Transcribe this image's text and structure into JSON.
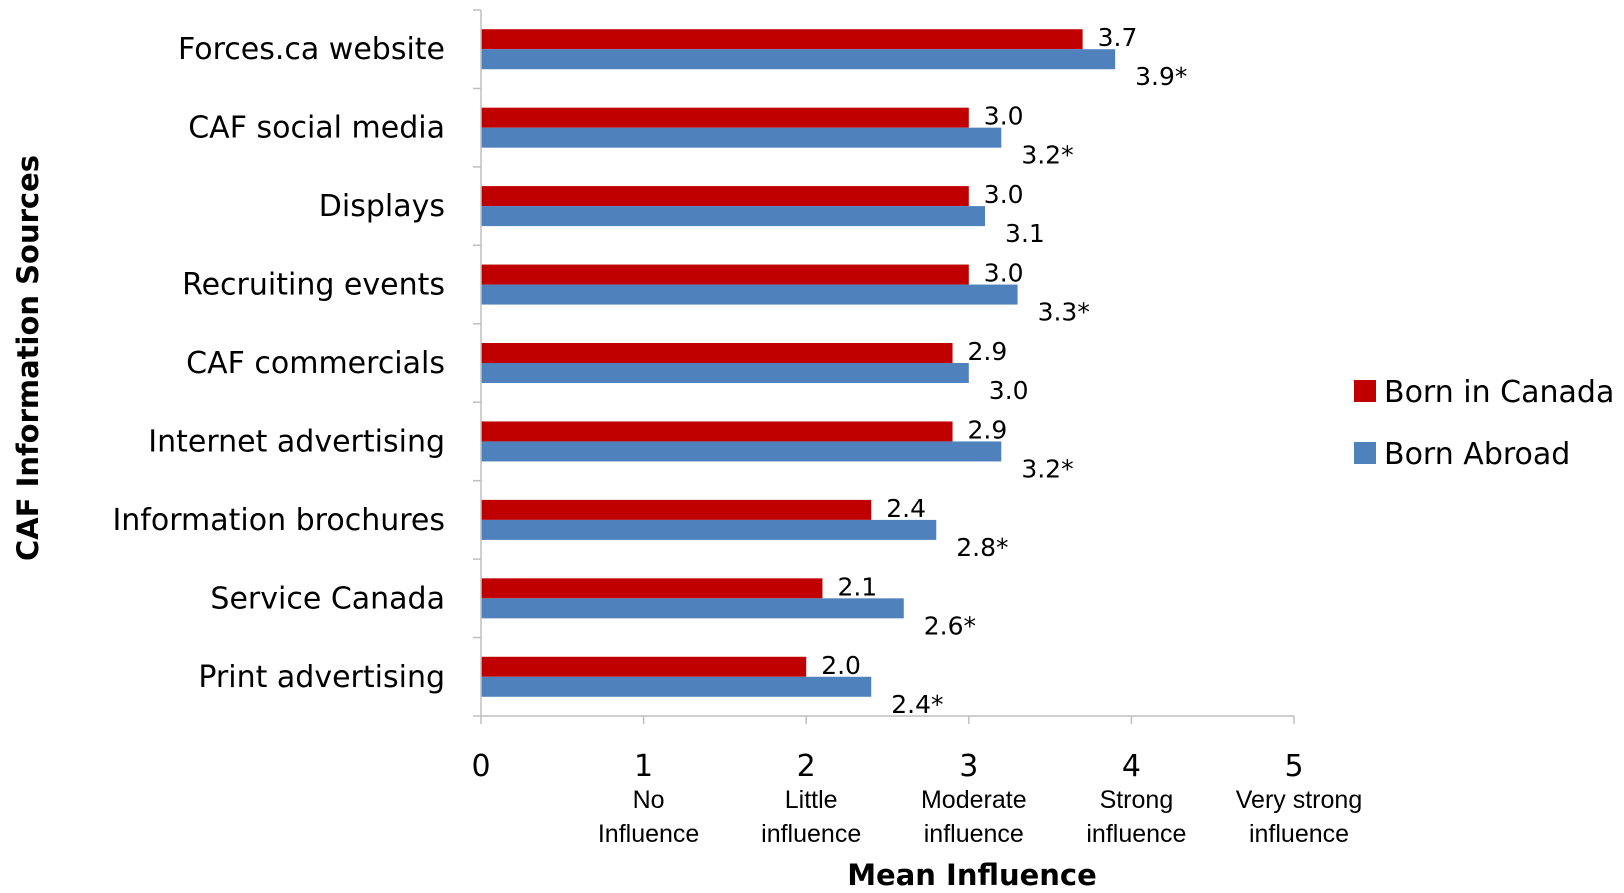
{
  "chart_data": {
    "type": "bar",
    "orientation": "horizontal",
    "categories": [
      "Forces.ca website",
      "CAF social media",
      "Displays",
      "Recruiting events",
      "CAF commercials",
      "Internet advertising",
      "Information brochures",
      "Service Canada",
      "Print advertising"
    ],
    "series": [
      {
        "name": "Born in Canada",
        "color": "#c00000",
        "values": [
          3.7,
          3.0,
          3.0,
          3.0,
          2.9,
          2.9,
          2.4,
          2.1,
          2.0
        ],
        "labels": [
          "3.7",
          "3.0",
          "3.0",
          "3.0",
          "2.9",
          "2.9",
          "2.4",
          "2.1",
          "2.0"
        ]
      },
      {
        "name": "Born Abroad",
        "color": "#4f81bd",
        "values": [
          3.9,
          3.2,
          3.1,
          3.3,
          3.0,
          3.2,
          2.8,
          2.6,
          2.4
        ],
        "labels": [
          "3.9*",
          "3.2*",
          "3.1",
          "3.3*",
          "3.0",
          "3.2*",
          "2.8*",
          "2.6*",
          "2.4*"
        ]
      }
    ],
    "xlim": [
      0,
      5
    ],
    "xticks": [
      {
        "value": 0,
        "label": "0",
        "desc": []
      },
      {
        "value": 1,
        "label": "1",
        "desc": [
          "No",
          "Influence"
        ]
      },
      {
        "value": 2,
        "label": "2",
        "desc": [
          "Little",
          "influence"
        ]
      },
      {
        "value": 3,
        "label": "3",
        "desc": [
          "Moderate",
          "influence"
        ]
      },
      {
        "value": 4,
        "label": "4",
        "desc": [
          "Strong",
          "influence"
        ]
      },
      {
        "value": 5,
        "label": "5",
        "desc": [
          "Very strong",
          "influence"
        ]
      }
    ],
    "xlabel": "Mean Influence",
    "ylabel": "CAF Information Sources",
    "grid": false,
    "legend_position": "right"
  }
}
